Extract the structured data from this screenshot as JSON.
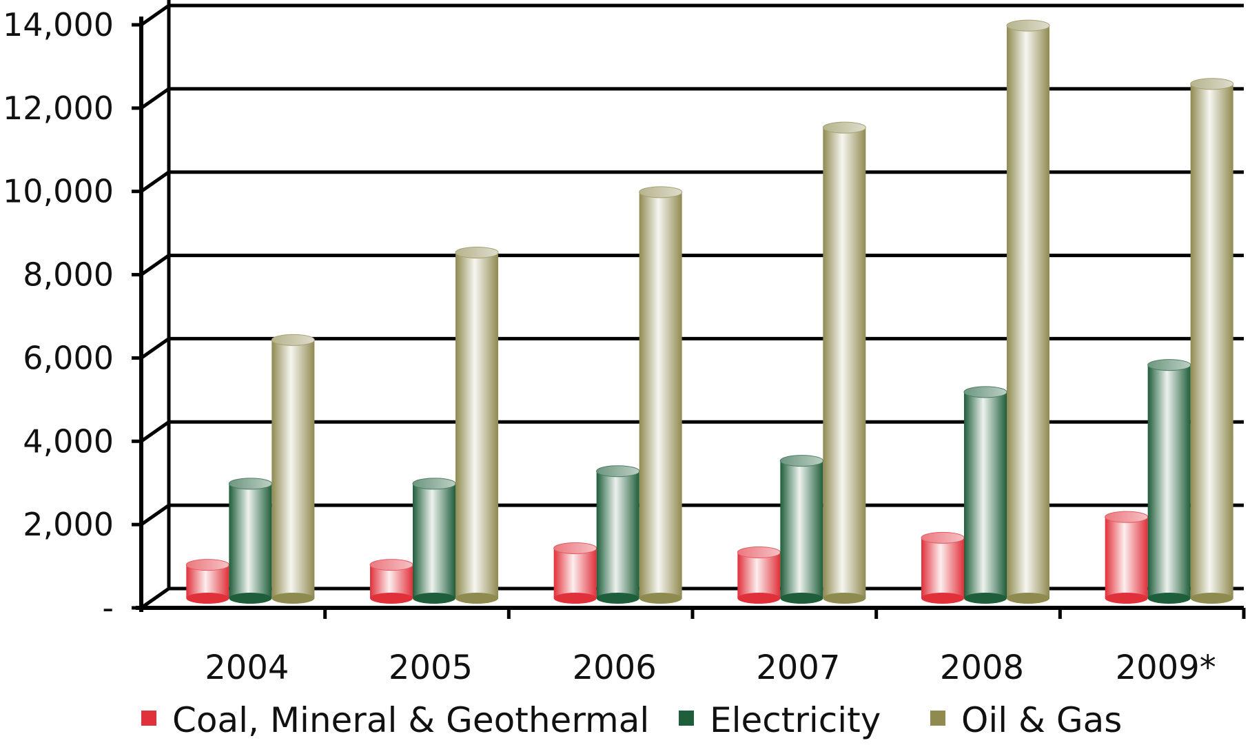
{
  "chart_data": {
    "type": "bar",
    "title": "",
    "xlabel": "",
    "ylabel": "",
    "ylim": [
      0,
      14000
    ],
    "yticks": [
      0,
      2000,
      4000,
      6000,
      8000,
      10000,
      12000,
      14000
    ],
    "ytick_labels": [
      "-",
      "2,000",
      "4,000",
      "6,000",
      "8,000",
      "10,000",
      "12,000",
      "14,000"
    ],
    "categories": [
      "2004",
      "2005",
      "2006",
      "2007",
      "2008",
      "2009*"
    ],
    "series": [
      {
        "name": "Coal, Mineral & Geothermal",
        "color": "#e0303a",
        "values": [
          800,
          800,
          1200,
          1100,
          1450,
          1950
        ]
      },
      {
        "name": "Electricity",
        "color": "#1f5e3a",
        "values": [
          2750,
          2750,
          3050,
          3300,
          4950,
          5600
        ]
      },
      {
        "name": "Oil & Gas",
        "color": "#8f8a50",
        "values": [
          6200,
          8300,
          9750,
          11300,
          13750,
          12350
        ]
      }
    ],
    "grid": true,
    "legend_position": "bottom"
  }
}
